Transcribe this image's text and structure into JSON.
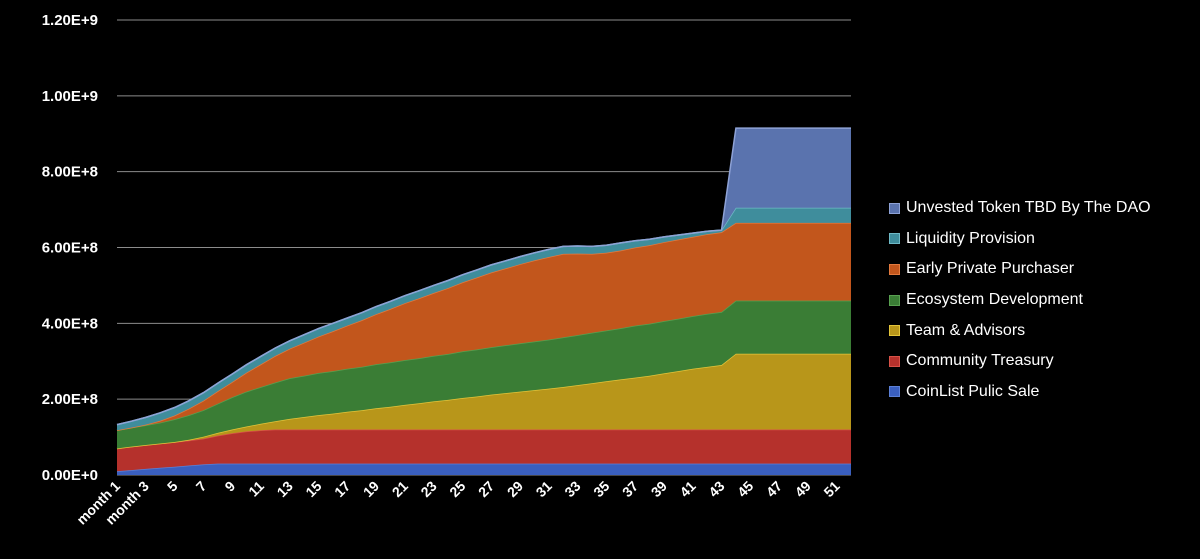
{
  "chart_data": {
    "type": "area",
    "stacked": true,
    "x_labels": [
      "month 1",
      "",
      "month 3",
      "",
      "5",
      "",
      "7",
      "",
      "9",
      "",
      "11",
      "",
      "13",
      "",
      "15",
      "",
      "17",
      "",
      "19",
      "",
      "21",
      "",
      "23",
      "",
      "25",
      "",
      "27",
      "",
      "29",
      "",
      "31",
      "",
      "33",
      "",
      "35",
      "",
      "37",
      "",
      "39",
      "",
      "41",
      "",
      "43",
      "",
      "45",
      "",
      "47",
      "",
      "49",
      "",
      "51",
      ""
    ],
    "yticks": [
      "0.00E+0",
      "2.00E+8",
      "4.00E+8",
      "6.00E+8",
      "8.00E+8",
      "1.00E+9",
      "1.20E+9"
    ],
    "ylim": [
      0,
      1200000000
    ],
    "grid": true,
    "legend_position": "right",
    "series": [
      {
        "name": "CoinList Pulic Sale",
        "color": "#3a5fbf",
        "line": "#5c80d6",
        "values": [
          10000000.0,
          13000000.0,
          16000000.0,
          19000000.0,
          22000000.0,
          25000000.0,
          28000000.0,
          30000000.0,
          30000000.0,
          30000000.0,
          30000000.0,
          30000000.0,
          30000000.0,
          30000000.0,
          30000000.0,
          30000000.0,
          30000000.0,
          30000000.0,
          30000000.0,
          30000000.0,
          30000000.0,
          30000000.0,
          30000000.0,
          30000000.0,
          30000000.0,
          30000000.0,
          30000000.0,
          30000000.0,
          30000000.0,
          30000000.0,
          30000000.0,
          30000000.0,
          30000000.0,
          30000000.0,
          30000000.0,
          30000000.0,
          30000000.0,
          30000000.0,
          30000000.0,
          30000000.0,
          30000000.0,
          30000000.0,
          30000000.0,
          30000000.0,
          30000000.0,
          30000000.0,
          30000000.0,
          30000000.0,
          30000000.0,
          30000000.0,
          30000000.0,
          30000000.0
        ]
      },
      {
        "name": "Community Treasury",
        "color": "#b5312c",
        "line": "#d85248",
        "values": [
          60000000.0,
          62000000.0,
          63000000.0,
          64000000.0,
          65000000.0,
          66000000.0,
          68000000.0,
          74000000.0,
          80000000.0,
          85000000.0,
          88000000.0,
          90000000.0,
          90000000.0,
          90000000.0,
          90000000.0,
          90000000.0,
          90000000.0,
          90000000.0,
          90000000.0,
          90000000.0,
          90000000.0,
          90000000.0,
          90000000.0,
          90000000.0,
          90000000.0,
          90000000.0,
          90000000.0,
          90000000.0,
          90000000.0,
          90000000.0,
          90000000.0,
          90000000.0,
          90000000.0,
          90000000.0,
          90000000.0,
          90000000.0,
          90000000.0,
          90000000.0,
          90000000.0,
          90000000.0,
          90000000.0,
          90000000.0,
          90000000.0,
          90000000.0,
          90000000.0,
          90000000.0,
          90000000.0,
          90000000.0,
          90000000.0,
          90000000.0,
          90000000.0,
          90000000.0
        ]
      },
      {
        "name": "Team & Advisors",
        "color": "#b8961a",
        "line": "#e2c43a",
        "values": [
          0,
          0,
          0,
          0,
          0,
          2000000.0,
          5000000.0,
          7000000.0,
          10000000.0,
          13000000.0,
          17000000.0,
          22000000.0,
          28000000.0,
          33000000.0,
          38000000.0,
          42000000.0,
          47000000.0,
          51000000.0,
          56000000.0,
          60000000.0,
          65000000.0,
          69000000.0,
          74000000.0,
          78000000.0,
          83000000.0,
          87000000.0,
          92000000.0,
          96000000.0,
          100000000.0,
          104000000.0,
          108000000.0,
          112000000.0,
          117000000.0,
          122000000.0,
          127000000.0,
          132000000.0,
          137000000.0,
          142000000.0,
          148000000.0,
          154000000.0,
          160000000.0,
          165000000.0,
          170000000.0,
          200000000.0,
          200000000.0,
          200000000.0,
          200000000.0,
          200000000.0,
          200000000.0,
          200000000.0,
          200000000.0,
          200000000.0
        ]
      },
      {
        "name": "Ecosystem Development",
        "color": "#3a7d35",
        "line": "#58a050",
        "values": [
          48000000.0,
          50000000.0,
          52000000.0,
          55000000.0,
          60000000.0,
          65000000.0,
          70000000.0,
          77000000.0,
          85000000.0,
          92000000.0,
          97000000.0,
          102000000.0,
          107000000.0,
          109000000.0,
          111000000.0,
          112000000.0,
          113000000.0,
          114000000.0,
          116000000.0,
          117000000.0,
          118000000.0,
          119000000.0,
          120000000.0,
          121000000.0,
          123000000.0,
          124000000.0,
          125000000.0,
          126000000.0,
          127000000.0,
          128000000.0,
          129000000.0,
          131000000.0,
          132000000.0,
          133000000.0,
          134000000.0,
          135000000.0,
          137000000.0,
          137000000.0,
          138000000.0,
          138000000.0,
          139000000.0,
          140000000.0,
          140000000.0,
          140000000.0,
          140000000.0,
          140000000.0,
          140000000.0,
          140000000.0,
          140000000.0,
          140000000.0,
          140000000.0,
          140000000.0
        ]
      },
      {
        "name": "Early Private Purchaser",
        "color": "#c2561c",
        "line": "#e27a3e",
        "values": [
          0,
          0,
          2000000.0,
          5000000.0,
          10000000.0,
          17000000.0,
          25000000.0,
          33000000.0,
          40000000.0,
          50000000.0,
          60000000.0,
          70000000.0,
          78000000.0,
          87000000.0,
          96000000.0,
          105000000.0,
          114000000.0,
          123000000.0,
          132000000.0,
          141000000.0,
          150000000.0,
          158000000.0,
          166000000.0,
          174000000.0,
          182000000.0,
          190000000.0,
          197000000.0,
          203000000.0,
          209000000.0,
          214000000.0,
          218000000.0,
          220000000.0,
          215000000.0,
          208000000.0,
          205000000.0,
          205000000.0,
          206000000.0,
          207000000.0,
          208000000.0,
          209000000.0,
          209000000.0,
          210000000.0,
          210000000.0,
          205000000.0,
          205000000.0,
          205000000.0,
          205000000.0,
          205000000.0,
          205000000.0,
          205000000.0,
          205000000.0,
          205000000.0
        ]
      },
      {
        "name": "Liquidity Provision",
        "color": "#3f8d9c",
        "line": "#6fb9c6",
        "values": [
          15000000.0,
          17000000.0,
          19000000.0,
          21000000.0,
          21000000.0,
          21000000.0,
          21000000.0,
          21000000.0,
          21000000.0,
          21000000.0,
          21000000.0,
          21000000.0,
          21000000.0,
          21000000.0,
          21000000.0,
          21000000.0,
          20000000.0,
          20000000.0,
          20000000.0,
          20000000.0,
          20000000.0,
          20000000.0,
          20000000.0,
          20000000.0,
          20000000.0,
          20000000.0,
          20000000.0,
          20000000.0,
          20000000.0,
          20000000.0,
          20000000.0,
          20000000.0,
          20000000.0,
          20000000.0,
          20000000.0,
          20000000.0,
          18000000.0,
          16000000.0,
          14000000.0,
          12000000.0,
          10000000.0,
          8000000.0,
          6000000.0,
          40000000.0,
          40000000.0,
          40000000.0,
          40000000.0,
          40000000.0,
          40000000.0,
          40000000.0,
          40000000.0,
          40000000.0
        ]
      },
      {
        "name": "Unvested Token TBD By The DAO",
        "color": "#5a73ae",
        "line": "#8ea2d6",
        "values": [
          0,
          0,
          0,
          0,
          0,
          0,
          0,
          0,
          0,
          0,
          0,
          0,
          0,
          0,
          0,
          0,
          0,
          0,
          0,
          0,
          0,
          0,
          0,
          0,
          0,
          0,
          0,
          0,
          0,
          0,
          0,
          0,
          0,
          0,
          0,
          0,
          0,
          0,
          0,
          0,
          0,
          0,
          0,
          210000000.0,
          210000000.0,
          210000000.0,
          210000000.0,
          210000000.0,
          210000000.0,
          210000000.0,
          210000000.0,
          210000000.0
        ]
      }
    ]
  }
}
